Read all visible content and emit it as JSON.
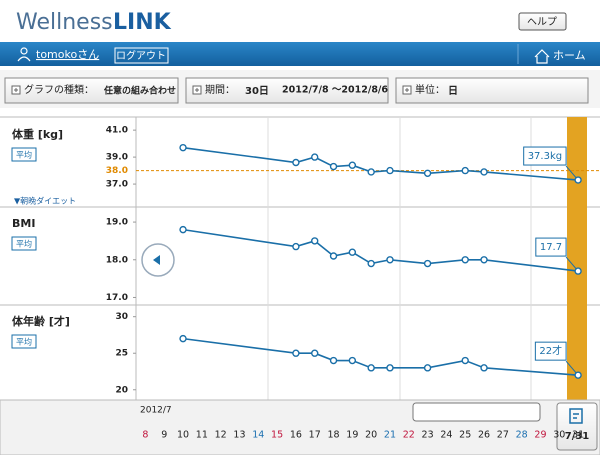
{
  "header": {
    "logo_part1": "Wellness",
    "logo_part2": "LINK",
    "help": "ヘルプ"
  },
  "nav": {
    "user": "tomokoさん",
    "logout": "ログアウト",
    "home": "ホーム"
  },
  "filters": {
    "type_label": "グラフの種類：",
    "type_value": "任意の組み合わせ",
    "period_label": "期間：",
    "period_value": "30日",
    "period_range": "2012/7/8 ～2012/8/6",
    "unit_label": "単位：",
    "unit_value": "日"
  },
  "chart_data": [
    {
      "type": "line",
      "label": "体重 [kg]",
      "badge": "平均",
      "note": "▼朝晩ダイエット",
      "color": "#1a6fa8",
      "x": [
        10,
        16,
        17,
        18,
        19,
        20,
        21,
        23,
        25,
        26,
        31
      ],
      "values": [
        39.7,
        38.6,
        39.0,
        38.3,
        38.4,
        37.9,
        38.0,
        37.8,
        38.0,
        37.9,
        37.3
      ],
      "value_labels": [
        null,
        null,
        null,
        null,
        null,
        null,
        null,
        null,
        null,
        null,
        "37.3kg"
      ],
      "ylim": [
        35.3,
        41.9
      ],
      "yticks": [
        {
          "value": 41,
          "label": "41.0"
        },
        {
          "value": 39,
          "label": "39.0"
        },
        {
          "value": 37,
          "label": "37.0"
        }
      ],
      "target": {
        "value": 38,
        "label": "38.0",
        "color": "#e08a00"
      }
    },
    {
      "type": "line",
      "label": "BMI",
      "badge": "平均",
      "color": "#1a6fa8",
      "x": [
        10,
        16,
        17,
        18,
        19,
        20,
        21,
        23,
        25,
        26,
        31
      ],
      "values": [
        18.8,
        18.35,
        18.5,
        18.1,
        18.2,
        17.9,
        18.0,
        17.9,
        18.0,
        18.0,
        17.7
      ],
      "value_labels": [
        null,
        null,
        null,
        null,
        null,
        null,
        null,
        null,
        null,
        null,
        "17.7"
      ],
      "ylim": [
        16.8,
        19.4
      ],
      "yticks": [
        {
          "value": 19,
          "label": "19.0"
        },
        {
          "value": 18,
          "label": "18.0"
        },
        {
          "value": 17,
          "label": "17.0"
        }
      ]
    },
    {
      "type": "line",
      "label": "体年齢 [才]",
      "badge": "平均",
      "color": "#1a6fa8",
      "x": [
        10,
        16,
        17,
        18,
        19,
        20,
        21,
        23,
        25,
        26,
        31
      ],
      "values": [
        27,
        25,
        25,
        24,
        24,
        23,
        23,
        23,
        24,
        23,
        22
      ],
      "value_labels": [
        null,
        null,
        null,
        null,
        null,
        null,
        null,
        null,
        null,
        null,
        "22才"
      ],
      "ylim": [
        18.6,
        31.6
      ],
      "yticks": [
        30,
        25,
        20
      ]
    }
  ],
  "date_axis": {
    "month": "2012/7",
    "days": [
      8,
      9,
      10,
      11,
      12,
      13,
      14,
      15,
      16,
      17,
      18,
      19,
      20,
      21,
      22,
      23,
      24,
      25,
      26,
      27,
      28,
      29,
      30,
      31
    ],
    "xlim": [
      7.5,
      31.5
    ],
    "sunday_color": "#c0143c",
    "saturday_color": "#1a6fb0",
    "selected": "7/31"
  }
}
